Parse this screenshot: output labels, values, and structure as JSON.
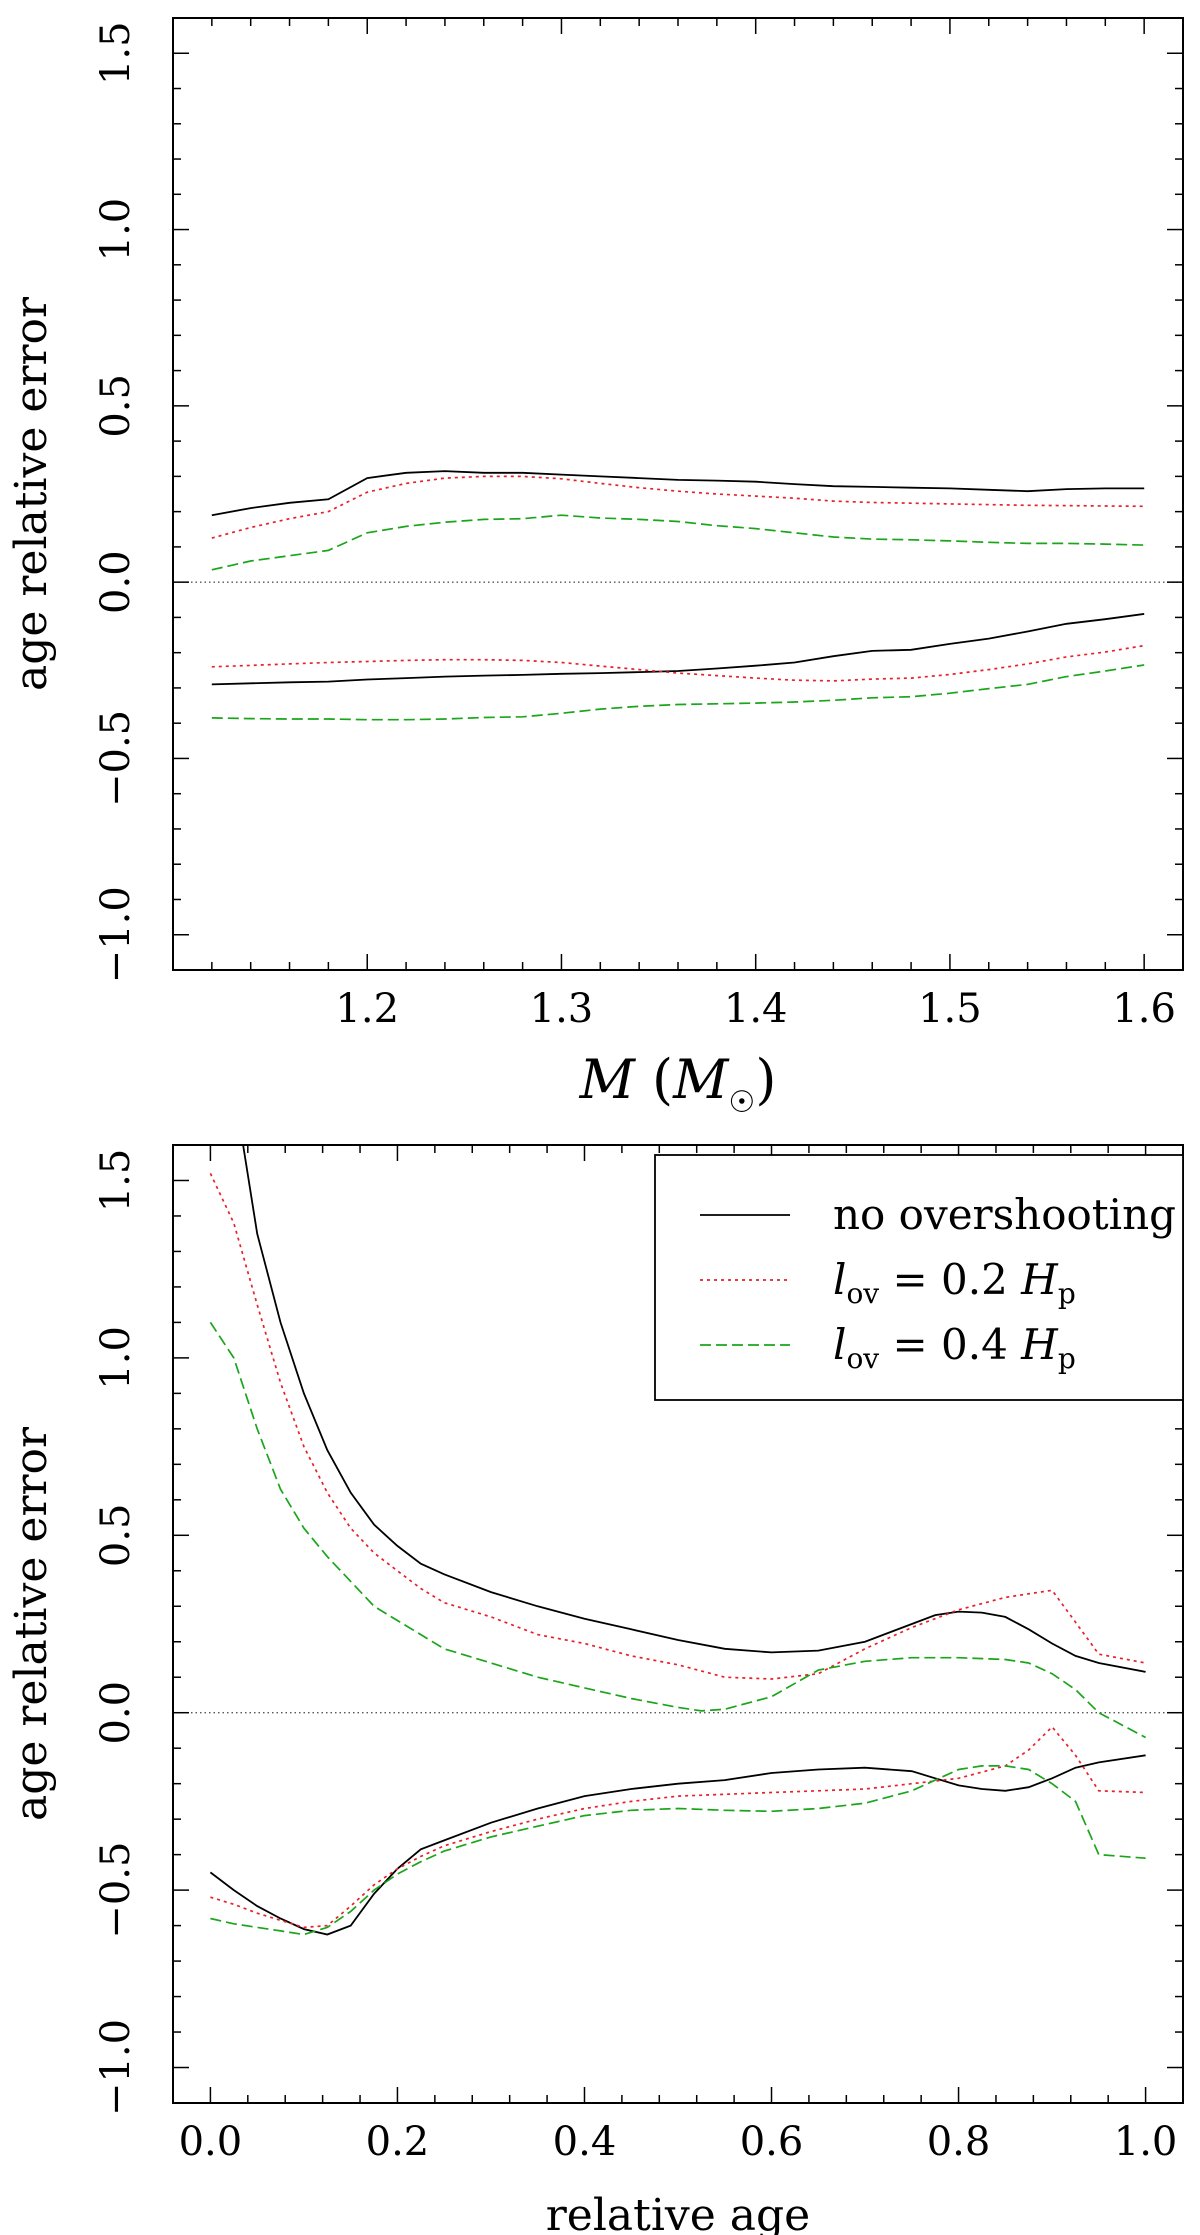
{
  "chart_data": [
    {
      "type": "line",
      "panel": "top",
      "title": "",
      "xlabel": "M (M☉)",
      "ylabel": "age relative error",
      "xlim": [
        1.1,
        1.62
      ],
      "ylim": [
        -1.1,
        1.6
      ],
      "xticks": [
        1.2,
        1.3,
        1.4,
        1.5,
        1.6
      ],
      "xticklabels": [
        "1.2",
        "1.3",
        "1.4",
        "1.5",
        "1.6"
      ],
      "yticks": [
        -1.0,
        -0.5,
        0.0,
        0.5,
        1.0,
        1.5
      ],
      "yticklabels": [
        "−1.0",
        "−0.5",
        "0.0",
        "0.5",
        "1.0",
        "1.5"
      ],
      "reference_line": {
        "y": 0.0,
        "style": "dotted"
      },
      "series": [
        {
          "name": "no overshooting",
          "color": "#000000",
          "dash": "solid",
          "bound": "upper",
          "x": [
            1.12,
            1.14,
            1.16,
            1.18,
            1.2,
            1.22,
            1.24,
            1.26,
            1.28,
            1.3,
            1.32,
            1.34,
            1.36,
            1.38,
            1.4,
            1.42,
            1.44,
            1.46,
            1.48,
            1.5,
            1.52,
            1.54,
            1.56,
            1.58,
            1.6
          ],
          "y": [
            0.19,
            0.21,
            0.225,
            0.235,
            0.295,
            0.31,
            0.315,
            0.31,
            0.31,
            0.305,
            0.3,
            0.295,
            0.29,
            0.288,
            0.285,
            0.278,
            0.272,
            0.27,
            0.268,
            0.266,
            0.262,
            0.258,
            0.264,
            0.266,
            0.266
          ]
        },
        {
          "name": "no overshooting",
          "color": "#000000",
          "dash": "solid",
          "bound": "lower",
          "x": [
            1.12,
            1.14,
            1.16,
            1.18,
            1.2,
            1.22,
            1.24,
            1.26,
            1.28,
            1.3,
            1.32,
            1.34,
            1.36,
            1.38,
            1.4,
            1.42,
            1.44,
            1.46,
            1.48,
            1.5,
            1.52,
            1.54,
            1.56,
            1.58,
            1.6
          ],
          "y": [
            -0.29,
            -0.287,
            -0.284,
            -0.282,
            -0.276,
            -0.272,
            -0.268,
            -0.265,
            -0.263,
            -0.26,
            -0.258,
            -0.255,
            -0.252,
            -0.245,
            -0.237,
            -0.228,
            -0.21,
            -0.195,
            -0.192,
            -0.175,
            -0.16,
            -0.14,
            -0.118,
            -0.105,
            -0.09
          ]
        },
        {
          "name": "l_ov = 0.2 H_p",
          "color": "#e8202a",
          "dash": "dotted",
          "bound": "upper",
          "x": [
            1.12,
            1.14,
            1.16,
            1.18,
            1.2,
            1.22,
            1.24,
            1.26,
            1.28,
            1.3,
            1.32,
            1.34,
            1.36,
            1.38,
            1.4,
            1.42,
            1.44,
            1.46,
            1.48,
            1.5,
            1.52,
            1.54,
            1.56,
            1.58,
            1.6
          ],
          "y": [
            0.125,
            0.155,
            0.18,
            0.2,
            0.255,
            0.28,
            0.295,
            0.3,
            0.3,
            0.293,
            0.28,
            0.268,
            0.258,
            0.25,
            0.244,
            0.238,
            0.23,
            0.226,
            0.224,
            0.222,
            0.22,
            0.218,
            0.217,
            0.216,
            0.215
          ]
        },
        {
          "name": "l_ov = 0.2 H_p",
          "color": "#e8202a",
          "dash": "dotted",
          "bound": "lower",
          "x": [
            1.12,
            1.14,
            1.16,
            1.18,
            1.2,
            1.22,
            1.24,
            1.26,
            1.28,
            1.3,
            1.32,
            1.34,
            1.36,
            1.38,
            1.4,
            1.42,
            1.44,
            1.46,
            1.48,
            1.5,
            1.52,
            1.54,
            1.56,
            1.58,
            1.6
          ],
          "y": [
            -0.24,
            -0.236,
            -0.232,
            -0.228,
            -0.225,
            -0.222,
            -0.22,
            -0.22,
            -0.222,
            -0.228,
            -0.238,
            -0.248,
            -0.258,
            -0.265,
            -0.272,
            -0.278,
            -0.28,
            -0.275,
            -0.272,
            -0.262,
            -0.248,
            -0.232,
            -0.212,
            -0.198,
            -0.18
          ]
        },
        {
          "name": "l_ov = 0.4 H_p",
          "color": "#1aa51a",
          "dash": "dashed",
          "bound": "upper",
          "x": [
            1.12,
            1.14,
            1.16,
            1.18,
            1.2,
            1.22,
            1.24,
            1.26,
            1.28,
            1.3,
            1.32,
            1.34,
            1.36,
            1.38,
            1.4,
            1.42,
            1.44,
            1.46,
            1.48,
            1.5,
            1.52,
            1.54,
            1.56,
            1.58,
            1.6
          ],
          "y": [
            0.035,
            0.06,
            0.075,
            0.09,
            0.14,
            0.158,
            0.17,
            0.178,
            0.18,
            0.19,
            0.182,
            0.178,
            0.172,
            0.16,
            0.152,
            0.14,
            0.128,
            0.122,
            0.12,
            0.117,
            0.113,
            0.11,
            0.11,
            0.108,
            0.105
          ]
        },
        {
          "name": "l_ov = 0.4 H_p",
          "color": "#1aa51a",
          "dash": "dashed",
          "bound": "lower",
          "x": [
            1.12,
            1.14,
            1.16,
            1.18,
            1.2,
            1.22,
            1.24,
            1.26,
            1.28,
            1.3,
            1.32,
            1.34,
            1.36,
            1.38,
            1.4,
            1.42,
            1.44,
            1.46,
            1.48,
            1.5,
            1.52,
            1.54,
            1.56,
            1.58,
            1.6
          ],
          "y": [
            -0.385,
            -0.387,
            -0.388,
            -0.388,
            -0.39,
            -0.39,
            -0.388,
            -0.384,
            -0.382,
            -0.372,
            -0.36,
            -0.352,
            -0.347,
            -0.345,
            -0.343,
            -0.34,
            -0.335,
            -0.328,
            -0.325,
            -0.315,
            -0.302,
            -0.29,
            -0.268,
            -0.252,
            -0.235
          ]
        }
      ]
    },
    {
      "type": "line",
      "panel": "bottom",
      "title": "",
      "xlabel": "relative age",
      "ylabel": "age relative error",
      "xlim": [
        -0.04,
        1.04
      ],
      "ylim": [
        -1.1,
        1.6
      ],
      "xticks": [
        0.0,
        0.2,
        0.4,
        0.6,
        0.8,
        1.0
      ],
      "xticklabels": [
        "0.0",
        "0.2",
        "0.4",
        "0.6",
        "0.8",
        "1.0"
      ],
      "yticks": [
        -1.0,
        -0.5,
        0.0,
        0.5,
        1.0,
        1.5
      ],
      "yticklabels": [
        "−1.0",
        "−0.5",
        "0.0",
        "0.5",
        "1.0",
        "1.5"
      ],
      "reference_line": {
        "y": 0.0,
        "style": "dotted"
      },
      "legend": {
        "placement": "top-right",
        "entries": [
          {
            "label": "no overshooting",
            "color": "#000000",
            "dash": "solid"
          },
          {
            "prefix": "l",
            "sub": "ov",
            "mid": " = 0.2 ",
            "sym": "H",
            "sym_sub": "p",
            "color": "#e8202a",
            "dash": "dotted"
          },
          {
            "prefix": "l",
            "sub": "ov",
            "mid": " = 0.4 ",
            "sym": "H",
            "sym_sub": "p",
            "color": "#1aa51a",
            "dash": "dashed"
          }
        ]
      },
      "series": [
        {
          "name": "no overshooting",
          "color": "#000000",
          "dash": "solid",
          "bound": "upper",
          "x": [
            0.035,
            0.05,
            0.075,
            0.1,
            0.125,
            0.15,
            0.175,
            0.2,
            0.225,
            0.25,
            0.3,
            0.35,
            0.4,
            0.45,
            0.5,
            0.55,
            0.6,
            0.65,
            0.7,
            0.75,
            0.775,
            0.8,
            0.825,
            0.85,
            0.875,
            0.9,
            0.925,
            0.95,
            1.0
          ],
          "y": [
            1.6,
            1.35,
            1.1,
            0.9,
            0.74,
            0.62,
            0.53,
            0.47,
            0.42,
            0.39,
            0.34,
            0.3,
            0.265,
            0.235,
            0.205,
            0.18,
            0.17,
            0.175,
            0.2,
            0.25,
            0.275,
            0.285,
            0.282,
            0.27,
            0.235,
            0.195,
            0.16,
            0.14,
            0.115
          ]
        },
        {
          "name": "no overshooting",
          "color": "#000000",
          "dash": "solid",
          "bound": "lower",
          "x": [
            0.0,
            0.025,
            0.05,
            0.075,
            0.1,
            0.125,
            0.15,
            0.175,
            0.2,
            0.225,
            0.25,
            0.3,
            0.35,
            0.4,
            0.45,
            0.5,
            0.55,
            0.6,
            0.65,
            0.7,
            0.75,
            0.775,
            0.8,
            0.825,
            0.85,
            0.875,
            0.9,
            0.925,
            0.95,
            1.0
          ],
          "y": [
            -0.45,
            -0.5,
            -0.545,
            -0.58,
            -0.61,
            -0.625,
            -0.6,
            -0.51,
            -0.44,
            -0.385,
            -0.36,
            -0.31,
            -0.27,
            -0.235,
            -0.215,
            -0.2,
            -0.19,
            -0.17,
            -0.16,
            -0.155,
            -0.165,
            -0.185,
            -0.205,
            -0.215,
            -0.22,
            -0.21,
            -0.185,
            -0.155,
            -0.14,
            -0.12
          ]
        },
        {
          "name": "l_ov = 0.2 H_p",
          "color": "#e8202a",
          "dash": "dotted",
          "bound": "upper",
          "x": [
            0.0,
            0.025,
            0.05,
            0.075,
            0.1,
            0.125,
            0.15,
            0.175,
            0.2,
            0.225,
            0.25,
            0.3,
            0.35,
            0.4,
            0.45,
            0.5,
            0.55,
            0.6,
            0.65,
            0.7,
            0.75,
            0.8,
            0.85,
            0.875,
            0.9,
            0.925,
            0.95,
            1.0
          ],
          "y": [
            1.52,
            1.38,
            1.15,
            0.93,
            0.75,
            0.62,
            0.52,
            0.45,
            0.4,
            0.35,
            0.31,
            0.27,
            0.22,
            0.195,
            0.16,
            0.135,
            0.1,
            0.095,
            0.11,
            0.18,
            0.24,
            0.29,
            0.325,
            0.335,
            0.345,
            0.255,
            0.165,
            0.14
          ]
        },
        {
          "name": "l_ov = 0.2 H_p",
          "color": "#e8202a",
          "dash": "dotted",
          "bound": "lower",
          "x": [
            0.0,
            0.025,
            0.05,
            0.075,
            0.1,
            0.125,
            0.15,
            0.175,
            0.2,
            0.225,
            0.25,
            0.3,
            0.35,
            0.4,
            0.45,
            0.5,
            0.55,
            0.6,
            0.65,
            0.7,
            0.75,
            0.8,
            0.85,
            0.875,
            0.9,
            0.925,
            0.95,
            1.0
          ],
          "y": [
            -0.52,
            -0.54,
            -0.565,
            -0.585,
            -0.605,
            -0.6,
            -0.545,
            -0.485,
            -0.44,
            -0.405,
            -0.375,
            -0.335,
            -0.3,
            -0.27,
            -0.25,
            -0.235,
            -0.23,
            -0.225,
            -0.22,
            -0.215,
            -0.2,
            -0.185,
            -0.15,
            -0.105,
            -0.04,
            -0.12,
            -0.22,
            -0.225
          ]
        },
        {
          "name": "l_ov = 0.4 H_p",
          "color": "#1aa51a",
          "dash": "dashed",
          "bound": "upper",
          "x": [
            0.0,
            0.025,
            0.05,
            0.075,
            0.1,
            0.125,
            0.15,
            0.175,
            0.2,
            0.225,
            0.25,
            0.3,
            0.35,
            0.4,
            0.45,
            0.5,
            0.525,
            0.55,
            0.6,
            0.65,
            0.7,
            0.75,
            0.8,
            0.85,
            0.875,
            0.9,
            0.925,
            0.95,
            1.0
          ],
          "y": [
            1.1,
            1.0,
            0.8,
            0.63,
            0.52,
            0.44,
            0.37,
            0.3,
            0.26,
            0.22,
            0.18,
            0.14,
            0.1,
            0.07,
            0.04,
            0.015,
            0.005,
            0.01,
            0.045,
            0.12,
            0.145,
            0.155,
            0.155,
            0.15,
            0.14,
            0.11,
            0.065,
            0.0,
            -0.07
          ]
        },
        {
          "name": "l_ov = 0.4 H_p",
          "color": "#1aa51a",
          "dash": "dashed",
          "bound": "lower",
          "x": [
            0.0,
            0.025,
            0.05,
            0.075,
            0.1,
            0.125,
            0.15,
            0.175,
            0.2,
            0.225,
            0.25,
            0.3,
            0.35,
            0.4,
            0.45,
            0.5,
            0.55,
            0.6,
            0.65,
            0.7,
            0.75,
            0.8,
            0.825,
            0.85,
            0.875,
            0.9,
            0.925,
            0.95,
            1.0
          ],
          "y": [
            -0.58,
            -0.595,
            -0.605,
            -0.615,
            -0.625,
            -0.605,
            -0.56,
            -0.5,
            -0.455,
            -0.42,
            -0.39,
            -0.35,
            -0.32,
            -0.29,
            -0.275,
            -0.27,
            -0.275,
            -0.278,
            -0.27,
            -0.255,
            -0.22,
            -0.16,
            -0.15,
            -0.15,
            -0.16,
            -0.2,
            -0.25,
            -0.4,
            -0.41
          ]
        }
      ]
    }
  ]
}
